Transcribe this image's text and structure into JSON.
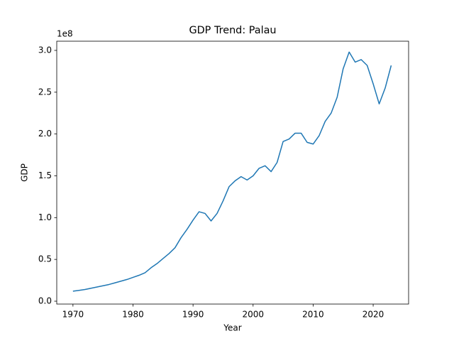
{
  "chart_data": {
    "type": "line",
    "title": "GDP Trend: Palau",
    "x_label": "Year",
    "y_label": "GDP",
    "y_offset_label": "1e8",
    "color": "#1f77b4",
    "x": [
      1970,
      1971,
      1972,
      1973,
      1974,
      1975,
      1976,
      1977,
      1978,
      1979,
      1980,
      1981,
      1982,
      1983,
      1984,
      1985,
      1986,
      1987,
      1988,
      1989,
      1990,
      1991,
      1992,
      1993,
      1994,
      1995,
      1996,
      1997,
      1998,
      1999,
      2000,
      2001,
      2002,
      2003,
      2004,
      2005,
      2006,
      2007,
      2008,
      2009,
      2010,
      2011,
      2012,
      2013,
      2014,
      2015,
      2016,
      2017,
      2018,
      2019,
      2020,
      2021,
      2022,
      2023
    ],
    "values": [
      12000000,
      13000000,
      14000000,
      15500000,
      17000000,
      18500000,
      20000000,
      22000000,
      24000000,
      26000000,
      28500000,
      31000000,
      34000000,
      40000000,
      45000000,
      51000000,
      57000000,
      64000000,
      76000000,
      86000000,
      97000000,
      107000000,
      105000000,
      96000000,
      105000000,
      120000000,
      137000000,
      144000000,
      149000000,
      145000000,
      150000000,
      159000000,
      162000000,
      155000000,
      166000000,
      191000000,
      194000000,
      201000000,
      201000000,
      190000000,
      188000000,
      198000000,
      215000000,
      225000000,
      244000000,
      278000000,
      298000000,
      286000000,
      289000000,
      282000000,
      260000000,
      236000000,
      255000000,
      282000000
    ],
    "xlim": [
      1967.3,
      2025.9
    ],
    "ylim": [
      -3400000,
      311000000
    ],
    "xticks": [
      1970,
      1980,
      1990,
      2000,
      2010,
      2020
    ],
    "yticks": [
      {
        "value": 0,
        "label": "0.0"
      },
      {
        "value": 50000000,
        "label": "0.5"
      },
      {
        "value": 100000000,
        "label": "1.0"
      },
      {
        "value": 150000000,
        "label": "1.5"
      },
      {
        "value": 200000000,
        "label": "2.0"
      },
      {
        "value": 250000000,
        "label": "2.5"
      },
      {
        "value": 300000000,
        "label": "3.0"
      }
    ]
  }
}
